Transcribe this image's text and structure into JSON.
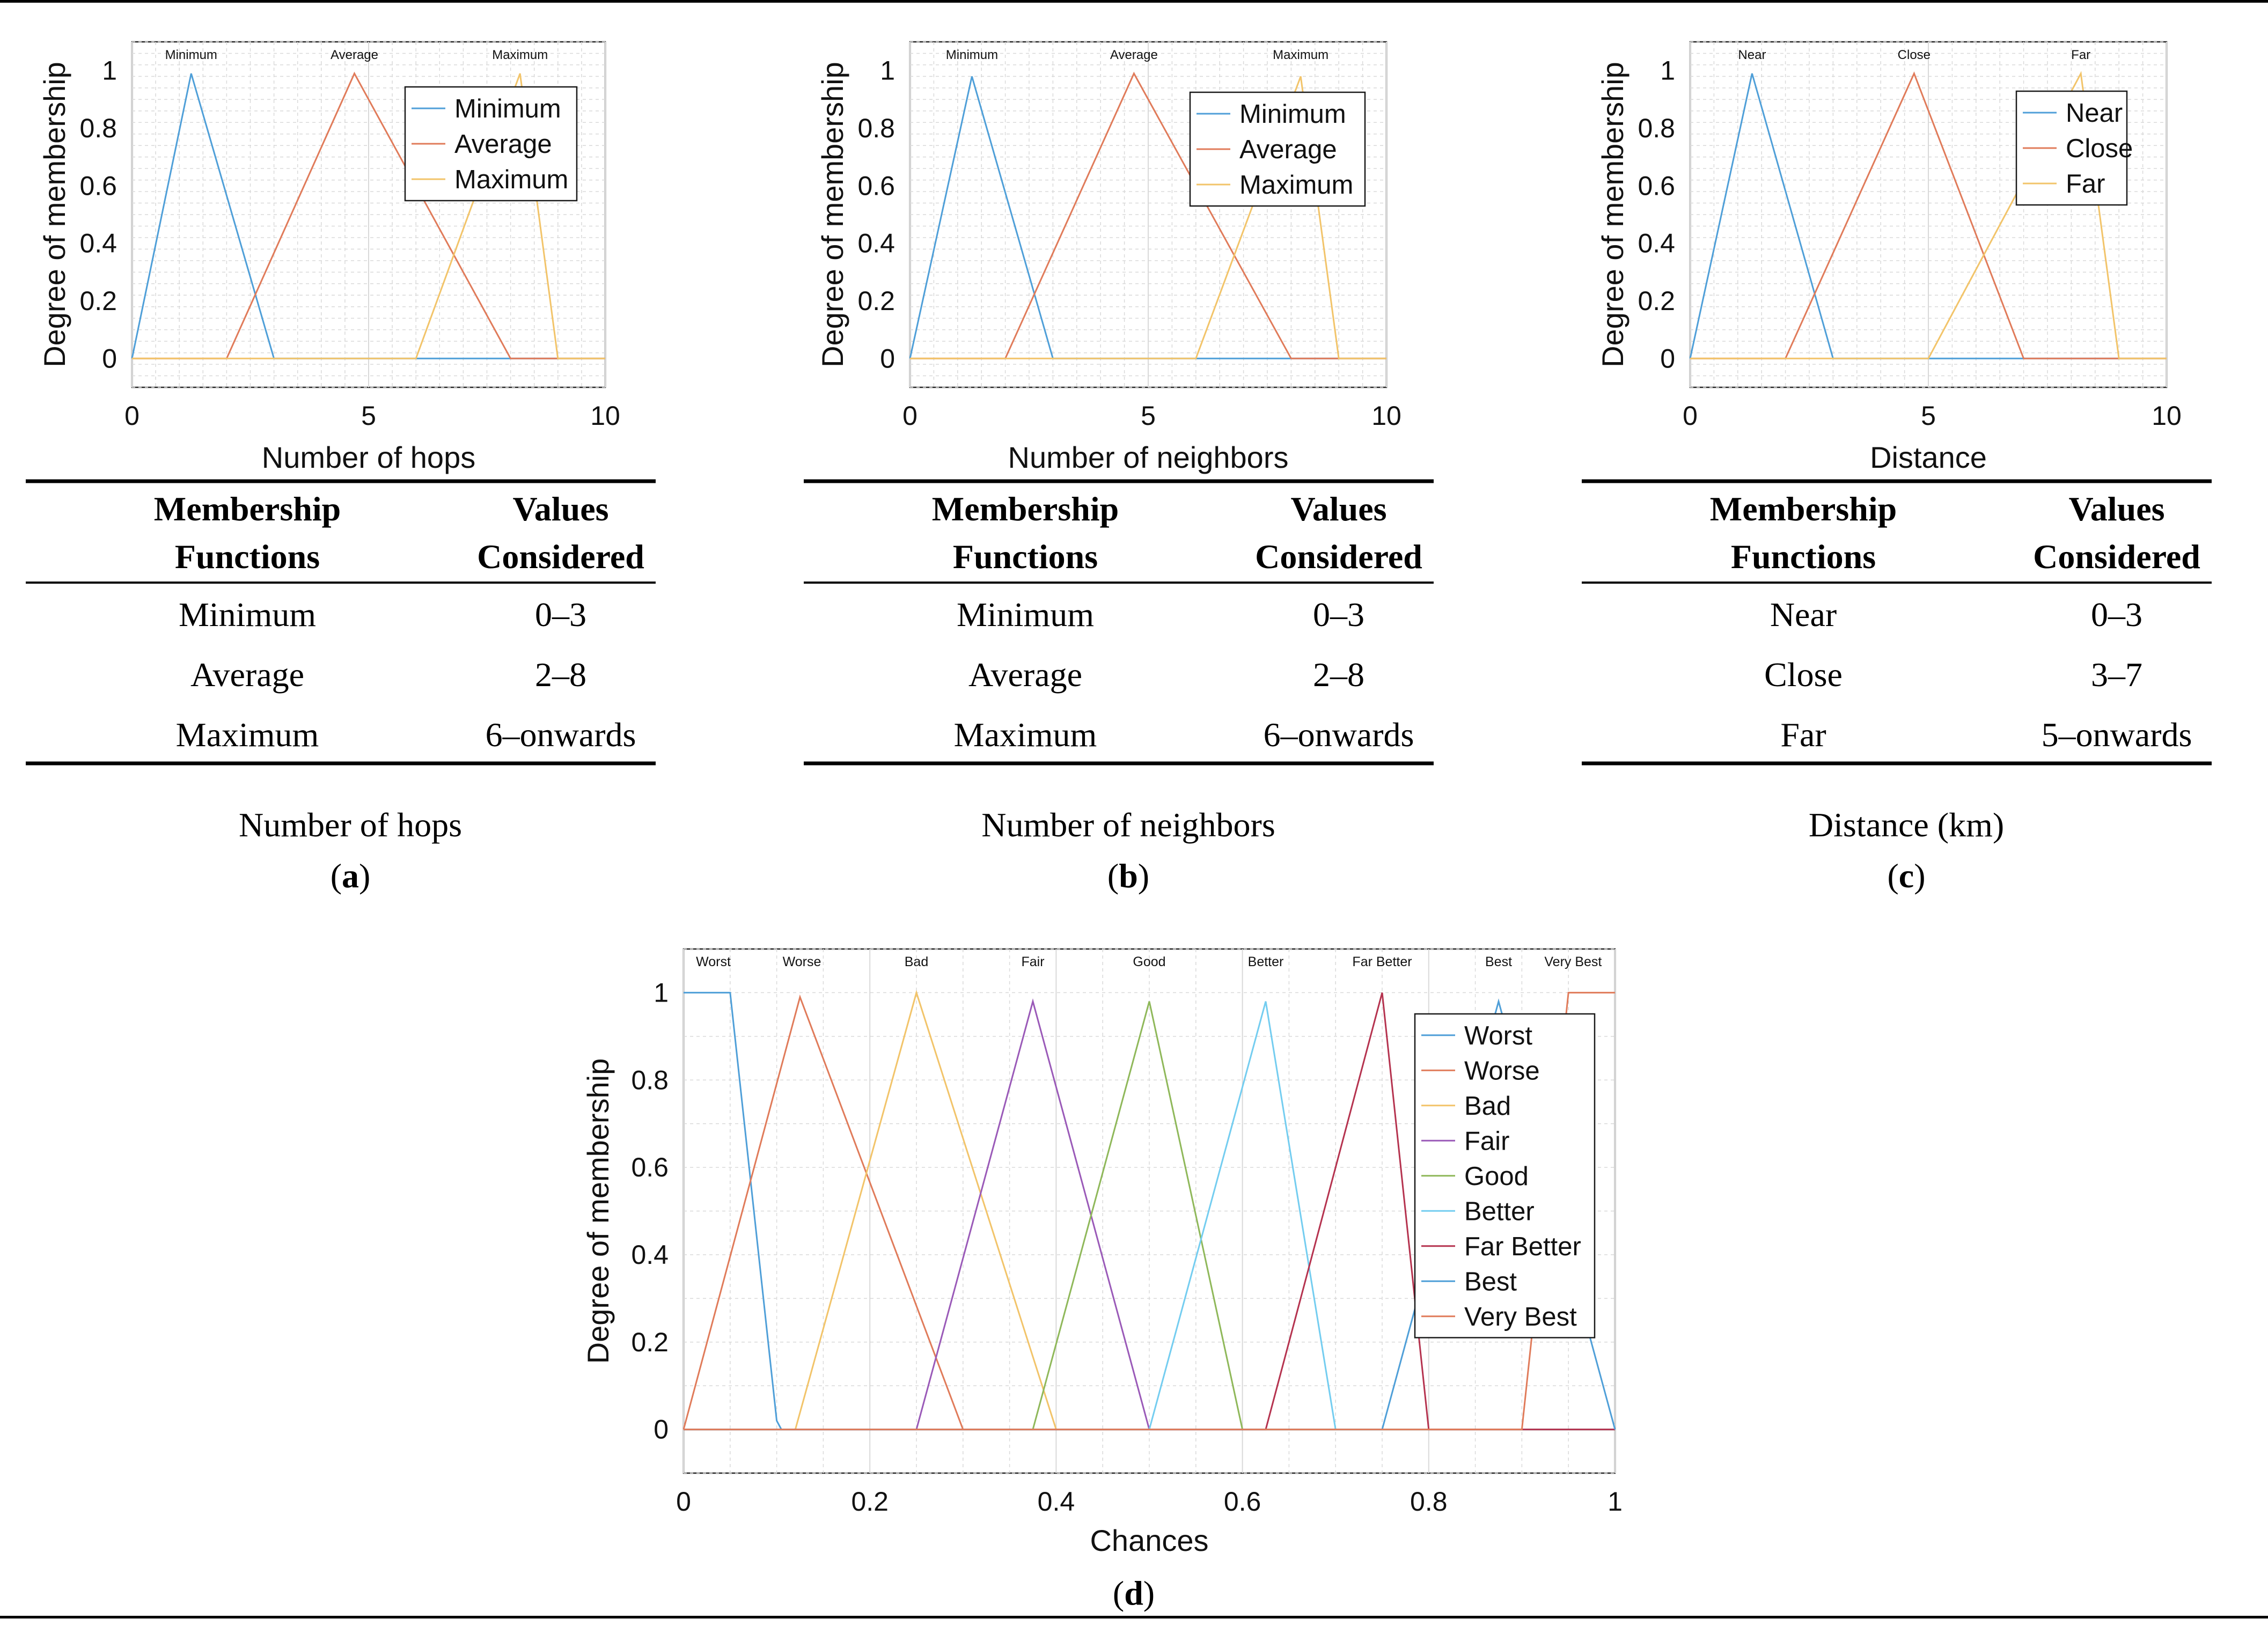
{
  "colors": {
    "blue": "#4f9fd8",
    "orange": "#e07b5a",
    "yellow": "#f2c46a",
    "purple": "#9a5ab8",
    "green": "#8fb85a",
    "cyan": "#74cdf0",
    "crimson": "#b5334f",
    "grid": "#d9d9d9",
    "rule": "#000000"
  },
  "chart_data": [
    {
      "id": "a",
      "type": "line",
      "xlabel": "Number of hops",
      "ylabel": "Degree of membership",
      "xlim": [
        0,
        10
      ],
      "ylim": [
        -0.1,
        1.1
      ],
      "xticks": [
        0,
        5,
        10
      ],
      "yticks": [
        0,
        0.2,
        0.4,
        0.6,
        0.8,
        1
      ],
      "grid": true,
      "legend_position": "top-right",
      "series": [
        {
          "name": "Minimum",
          "top_label": "Minimum",
          "color": "blue",
          "points": [
            [
              0,
              0
            ],
            [
              1.25,
              0.99
            ],
            [
              3,
              0
            ],
            [
              10,
              0
            ]
          ]
        },
        {
          "name": "Average",
          "top_label": "Average",
          "color": "orange",
          "points": [
            [
              0,
              0
            ],
            [
              2,
              0
            ],
            [
              4.7,
              0.99
            ],
            [
              8,
              0
            ],
            [
              10,
              0
            ]
          ]
        },
        {
          "name": "Maximum",
          "top_label": "Maximum",
          "color": "yellow",
          "points": [
            [
              0,
              0
            ],
            [
              6,
              0
            ],
            [
              8.2,
              0.99
            ],
            [
              9,
              0
            ],
            [
              10,
              0
            ]
          ]
        }
      ],
      "table": {
        "headers": [
          [
            "Membership",
            "Functions"
          ],
          [
            "Values",
            "Considered"
          ]
        ],
        "rows": [
          [
            "Minimum",
            "0–3"
          ],
          [
            "Average",
            "2–8"
          ],
          [
            "Maximum",
            "6–onwards"
          ]
        ]
      },
      "caption": "Number of hops",
      "panel_label": "a"
    },
    {
      "id": "b",
      "type": "line",
      "xlabel": "Number of neighbors",
      "ylabel": "Degree of membership",
      "xlim": [
        0,
        10
      ],
      "ylim": [
        -0.1,
        1.1
      ],
      "xticks": [
        0,
        5,
        10
      ],
      "yticks": [
        0,
        0.2,
        0.4,
        0.6,
        0.8,
        1
      ],
      "grid": true,
      "legend_position": "top-right",
      "series": [
        {
          "name": "Minimum",
          "top_label": "Minimum",
          "color": "blue",
          "points": [
            [
              0,
              0
            ],
            [
              1.3,
              0.98
            ],
            [
              3,
              0
            ],
            [
              10,
              0
            ]
          ]
        },
        {
          "name": "Average",
          "top_label": "Average",
          "color": "orange",
          "points": [
            [
              0,
              0
            ],
            [
              2,
              0
            ],
            [
              4.7,
              0.99
            ],
            [
              8,
              0
            ],
            [
              10,
              0
            ]
          ]
        },
        {
          "name": "Maximum",
          "top_label": "Maximum",
          "color": "yellow",
          "points": [
            [
              0,
              0
            ],
            [
              6,
              0
            ],
            [
              8.2,
              0.98
            ],
            [
              9,
              0
            ],
            [
              10,
              0
            ]
          ]
        }
      ],
      "table": {
        "headers": [
          [
            "Membership",
            "Functions"
          ],
          [
            "Values",
            "Considered"
          ]
        ],
        "rows": [
          [
            "Minimum",
            "0–3"
          ],
          [
            "Average",
            "2–8"
          ],
          [
            "Maximum",
            "6–onwards"
          ]
        ]
      },
      "caption": "Number of neighbors",
      "panel_label": "b"
    },
    {
      "id": "c",
      "type": "line",
      "xlabel": "Distance",
      "ylabel": "Degree of membership",
      "xlim": [
        0,
        10
      ],
      "ylim": [
        -0.1,
        1.1
      ],
      "xticks": [
        0,
        5,
        10
      ],
      "yticks": [
        0,
        0.2,
        0.4,
        0.6,
        0.8,
        1
      ],
      "grid": true,
      "legend_position": "top-right",
      "series": [
        {
          "name": "Near",
          "top_label": "Near",
          "color": "blue",
          "points": [
            [
              0,
              0
            ],
            [
              1.3,
              0.99
            ],
            [
              3,
              0
            ],
            [
              10,
              0
            ]
          ]
        },
        {
          "name": "Close",
          "top_label": "Close",
          "color": "orange",
          "points": [
            [
              0,
              0
            ],
            [
              2,
              0
            ],
            [
              4.7,
              0.99
            ],
            [
              7,
              0
            ],
            [
              10,
              0
            ]
          ]
        },
        {
          "name": "Far",
          "top_label": "Far",
          "color": "yellow",
          "points": [
            [
              0,
              0
            ],
            [
              5,
              0
            ],
            [
              8.2,
              0.99
            ],
            [
              9,
              0
            ],
            [
              10,
              0
            ]
          ]
        }
      ],
      "table": {
        "headers": [
          [
            "Membership",
            "Functions"
          ],
          [
            "Values",
            "Considered"
          ]
        ],
        "rows": [
          [
            "Near",
            "0–3"
          ],
          [
            "Close",
            "3–7"
          ],
          [
            "Far",
            "5–onwards"
          ]
        ]
      },
      "caption": "Distance (km)",
      "panel_label": "c"
    },
    {
      "id": "d",
      "type": "line",
      "xlabel": "Chances",
      "ylabel": "Degree of membership",
      "xlim": [
        0,
        1
      ],
      "ylim": [
        -0.1,
        1.1
      ],
      "xticks": [
        0,
        0.2,
        0.4,
        0.6,
        0.8,
        1
      ],
      "yticks": [
        0,
        0.2,
        0.4,
        0.6,
        0.8,
        1
      ],
      "grid": true,
      "legend_position": "top-right",
      "series": [
        {
          "name": "Worst",
          "top_label": "Worst",
          "label_x": 0.032,
          "color": "blue",
          "points": [
            [
              0,
              1
            ],
            [
              0.05,
              1
            ],
            [
              0.1,
              0.02
            ],
            [
              0.105,
              0
            ],
            [
              1,
              0
            ]
          ]
        },
        {
          "name": "Worse",
          "top_label": "Worse",
          "label_x": 0.127,
          "color": "orange",
          "points": [
            [
              0,
              0
            ],
            [
              0.125,
              0.99
            ],
            [
              0.3,
              0
            ],
            [
              1,
              0
            ]
          ]
        },
        {
          "name": "Bad",
          "top_label": "Bad",
          "label_x": 0.25,
          "color": "yellow",
          "points": [
            [
              0,
              0
            ],
            [
              0.12,
              0
            ],
            [
              0.25,
              1
            ],
            [
              0.4,
              0
            ],
            [
              1,
              0
            ]
          ]
        },
        {
          "name": "Fair",
          "top_label": "Fair",
          "label_x": 0.375,
          "color": "purple",
          "points": [
            [
              0,
              0
            ],
            [
              0.25,
              0
            ],
            [
              0.375,
              0.98
            ],
            [
              0.5,
              0
            ],
            [
              1,
              0
            ]
          ]
        },
        {
          "name": "Good",
          "top_label": "Good",
          "label_x": 0.5,
          "color": "green",
          "points": [
            [
              0,
              0
            ],
            [
              0.375,
              0
            ],
            [
              0.5,
              0.98
            ],
            [
              0.6,
              0
            ],
            [
              1,
              0
            ]
          ]
        },
        {
          "name": "Better",
          "top_label": "Better",
          "label_x": 0.625,
          "color": "cyan",
          "points": [
            [
              0,
              0
            ],
            [
              0.5,
              0
            ],
            [
              0.625,
              0.98
            ],
            [
              0.7,
              0
            ],
            [
              1,
              0
            ]
          ]
        },
        {
          "name": "Far Better",
          "top_label": "Far Better",
          "label_x": 0.75,
          "color": "crimson",
          "points": [
            [
              0,
              0
            ],
            [
              0.625,
              0
            ],
            [
              0.75,
              1
            ],
            [
              0.8,
              0
            ],
            [
              1,
              0
            ]
          ]
        },
        {
          "name": "Best",
          "top_label": "Best",
          "label_x": 0.875,
          "color": "blue",
          "points": [
            [
              0,
              0
            ],
            [
              0.75,
              0
            ],
            [
              0.875,
              0.98
            ],
            [
              1,
              0
            ]
          ]
        },
        {
          "name": "Very Best",
          "top_label": "Very Best",
          "label_x": 0.955,
          "color": "orange",
          "points": [
            [
              0,
              0
            ],
            [
              0.9,
              0
            ],
            [
              0.95,
              1
            ],
            [
              1,
              1
            ]
          ]
        }
      ],
      "panel_label": "d"
    }
  ]
}
